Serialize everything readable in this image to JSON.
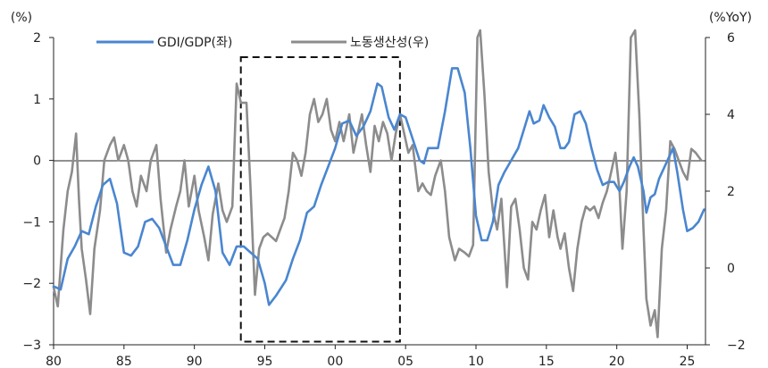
{
  "chart_data": {
    "type": "line",
    "left_unit": "(%)",
    "right_unit": "(%YoY)",
    "x_ticks": [
      "80",
      "85",
      "90",
      "95",
      "00",
      "05",
      "10",
      "15",
      "20",
      "25"
    ],
    "x_tick_years": [
      1980,
      1985,
      1990,
      1995,
      2000,
      2005,
      2010,
      2015,
      2020,
      2025
    ],
    "xlim": [
      1980,
      2026.3
    ],
    "left_ylim": [
      -3,
      2
    ],
    "left_ticks": [
      "2",
      "1",
      "0",
      "−1",
      "−2",
      "−3"
    ],
    "left_tick_values": [
      2,
      1,
      0,
      -1,
      -2,
      -3
    ],
    "right_ylim": [
      -2,
      6
    ],
    "right_ticks": [
      "6",
      "4",
      "2",
      "0",
      "−2"
    ],
    "right_tick_values": [
      6,
      4,
      2,
      0,
      -2
    ],
    "legend_position": "top",
    "highlight_box": {
      "x_from": 1993.3,
      "x_to": 2004.6,
      "y_from": -2.95,
      "y_to": 1.68
    },
    "series": [
      {
        "name": "GDI/GDP(좌)",
        "axis": "left",
        "color": "#4a86d0",
        "points": [
          [
            1980.0,
            -2.05
          ],
          [
            1980.5,
            -2.1
          ],
          [
            1981.0,
            -1.6
          ],
          [
            1981.5,
            -1.4
          ],
          [
            1982.0,
            -1.15
          ],
          [
            1982.5,
            -1.2
          ],
          [
            1983.0,
            -0.75
          ],
          [
            1983.5,
            -0.4
          ],
          [
            1984.0,
            -0.3
          ],
          [
            1984.5,
            -0.7
          ],
          [
            1985.0,
            -1.5
          ],
          [
            1985.5,
            -1.55
          ],
          [
            1986.0,
            -1.4
          ],
          [
            1986.5,
            -1.0
          ],
          [
            1987.0,
            -0.95
          ],
          [
            1987.5,
            -1.1
          ],
          [
            1988.0,
            -1.4
          ],
          [
            1988.5,
            -1.7
          ],
          [
            1989.0,
            -1.7
          ],
          [
            1989.5,
            -1.3
          ],
          [
            1990.0,
            -0.8
          ],
          [
            1990.5,
            -0.4
          ],
          [
            1991.0,
            -0.1
          ],
          [
            1991.5,
            -0.5
          ],
          [
            1992.0,
            -1.5
          ],
          [
            1992.5,
            -1.7
          ],
          [
            1993.0,
            -1.4
          ],
          [
            1993.5,
            -1.4
          ],
          [
            1994.0,
            -1.5
          ],
          [
            1994.5,
            -1.6
          ],
          [
            1995.0,
            -2.0
          ],
          [
            1995.3,
            -2.35
          ],
          [
            1995.8,
            -2.2
          ],
          [
            1996.5,
            -1.95
          ],
          [
            1997.0,
            -1.6
          ],
          [
            1997.5,
            -1.3
          ],
          [
            1998.0,
            -0.85
          ],
          [
            1998.5,
            -0.75
          ],
          [
            1999.0,
            -0.4
          ],
          [
            1999.5,
            -0.1
          ],
          [
            2000.0,
            0.2
          ],
          [
            2000.5,
            0.6
          ],
          [
            2001.0,
            0.65
          ],
          [
            2001.5,
            0.4
          ],
          [
            2002.0,
            0.55
          ],
          [
            2002.5,
            0.8
          ],
          [
            2003.0,
            1.25
          ],
          [
            2003.3,
            1.2
          ],
          [
            2003.8,
            0.7
          ],
          [
            2004.2,
            0.5
          ],
          [
            2004.6,
            0.75
          ],
          [
            2005.0,
            0.7
          ],
          [
            2005.5,
            0.35
          ],
          [
            2006.0,
            0.0
          ],
          [
            2006.3,
            -0.05
          ],
          [
            2006.6,
            0.2
          ],
          [
            2007.0,
            0.2
          ],
          [
            2007.3,
            0.2
          ],
          [
            2007.8,
            0.8
          ],
          [
            2008.3,
            1.5
          ],
          [
            2008.7,
            1.5
          ],
          [
            2009.2,
            1.1
          ],
          [
            2009.6,
            0.2
          ],
          [
            2010.0,
            -0.9
          ],
          [
            2010.4,
            -1.3
          ],
          [
            2010.8,
            -1.3
          ],
          [
            2011.2,
            -1.0
          ],
          [
            2011.6,
            -0.4
          ],
          [
            2012.0,
            -0.2
          ],
          [
            2012.5,
            0.0
          ],
          [
            2013.0,
            0.2
          ],
          [
            2013.4,
            0.5
          ],
          [
            2013.8,
            0.8
          ],
          [
            2014.1,
            0.6
          ],
          [
            2014.5,
            0.65
          ],
          [
            2014.8,
            0.9
          ],
          [
            2015.2,
            0.7
          ],
          [
            2015.6,
            0.55
          ],
          [
            2016.0,
            0.2
          ],
          [
            2016.3,
            0.2
          ],
          [
            2016.6,
            0.3
          ],
          [
            2017.0,
            0.75
          ],
          [
            2017.4,
            0.8
          ],
          [
            2017.8,
            0.6
          ],
          [
            2018.2,
            0.2
          ],
          [
            2018.6,
            -0.15
          ],
          [
            2019.0,
            -0.4
          ],
          [
            2019.4,
            -0.35
          ],
          [
            2019.8,
            -0.35
          ],
          [
            2020.2,
            -0.5
          ],
          [
            2020.5,
            -0.35
          ],
          [
            2020.9,
            -0.1
          ],
          [
            2021.2,
            0.05
          ],
          [
            2021.5,
            -0.1
          ],
          [
            2021.9,
            -0.5
          ],
          [
            2022.1,
            -0.85
          ],
          [
            2022.4,
            -0.6
          ],
          [
            2022.7,
            -0.55
          ],
          [
            2023.0,
            -0.3
          ],
          [
            2023.3,
            -0.15
          ],
          [
            2023.7,
            0.05
          ],
          [
            2024.0,
            0.2
          ],
          [
            2024.3,
            -0.2
          ],
          [
            2024.7,
            -0.8
          ],
          [
            2025.0,
            -1.15
          ],
          [
            2025.4,
            -1.1
          ],
          [
            2025.8,
            -1.0
          ],
          [
            2026.2,
            -0.8
          ]
        ]
      },
      {
        "name": "노동생산성(우)",
        "axis": "right",
        "color": "#8c8c8c",
        "points": [
          [
            1980.0,
            -0.5
          ],
          [
            1980.3,
            -1.0
          ],
          [
            1980.7,
            1.0
          ],
          [
            1981.0,
            2.0
          ],
          [
            1981.3,
            2.5
          ],
          [
            1981.6,
            3.5
          ],
          [
            1981.8,
            1.8
          ],
          [
            1982.0,
            0.5
          ],
          [
            1982.3,
            -0.3
          ],
          [
            1982.6,
            -1.2
          ],
          [
            1982.9,
            0.5
          ],
          [
            1983.3,
            1.5
          ],
          [
            1983.6,
            2.8
          ],
          [
            1984.0,
            3.2
          ],
          [
            1984.3,
            3.4
          ],
          [
            1984.6,
            2.8
          ],
          [
            1985.0,
            3.2
          ],
          [
            1985.3,
            2.8
          ],
          [
            1985.6,
            2.0
          ],
          [
            1985.9,
            1.6
          ],
          [
            1986.2,
            2.4
          ],
          [
            1986.6,
            2.0
          ],
          [
            1986.9,
            2.8
          ],
          [
            1987.3,
            3.2
          ],
          [
            1987.6,
            1.8
          ],
          [
            1988.0,
            0.4
          ],
          [
            1988.3,
            1.0
          ],
          [
            1988.7,
            1.6
          ],
          [
            1989.0,
            2.0
          ],
          [
            1989.3,
            2.8
          ],
          [
            1989.6,
            1.6
          ],
          [
            1990.0,
            2.4
          ],
          [
            1990.3,
            1.5
          ],
          [
            1990.7,
            0.8
          ],
          [
            1991.0,
            0.2
          ],
          [
            1991.3,
            1.4
          ],
          [
            1991.7,
            2.2
          ],
          [
            1992.0,
            1.5
          ],
          [
            1992.3,
            1.2
          ],
          [
            1992.7,
            1.6
          ],
          [
            1993.0,
            4.8
          ],
          [
            1993.3,
            4.3
          ],
          [
            1993.7,
            4.3
          ],
          [
            1994.0,
            2.0
          ],
          [
            1994.3,
            -0.7
          ],
          [
            1994.6,
            0.5
          ],
          [
            1994.9,
            0.8
          ],
          [
            1995.2,
            0.9
          ],
          [
            1995.5,
            0.8
          ],
          [
            1995.8,
            0.7
          ],
          [
            1996.1,
            1.0
          ],
          [
            1996.4,
            1.3
          ],
          [
            1996.7,
            2.0
          ],
          [
            1997.0,
            3.0
          ],
          [
            1997.3,
            2.8
          ],
          [
            1997.6,
            2.4
          ],
          [
            1997.9,
            3.0
          ],
          [
            1998.2,
            4.0
          ],
          [
            1998.5,
            4.4
          ],
          [
            1998.8,
            3.8
          ],
          [
            1999.1,
            4.0
          ],
          [
            1999.4,
            4.4
          ],
          [
            1999.7,
            3.6
          ],
          [
            2000.0,
            3.3
          ],
          [
            2000.3,
            3.8
          ],
          [
            2000.6,
            3.3
          ],
          [
            2001.0,
            4.0
          ],
          [
            2001.3,
            3.0
          ],
          [
            2001.6,
            3.5
          ],
          [
            2001.9,
            4.0
          ],
          [
            2002.2,
            3.2
          ],
          [
            2002.5,
            2.5
          ],
          [
            2002.8,
            3.7
          ],
          [
            2003.1,
            3.3
          ],
          [
            2003.4,
            3.8
          ],
          [
            2003.7,
            3.5
          ],
          [
            2004.0,
            2.8
          ],
          [
            2004.3,
            3.5
          ],
          [
            2004.6,
            4.0
          ],
          [
            2004.9,
            3.5
          ],
          [
            2005.2,
            3.0
          ],
          [
            2005.5,
            3.2
          ],
          [
            2005.9,
            2.0
          ],
          [
            2006.2,
            2.2
          ],
          [
            2006.5,
            2.0
          ],
          [
            2006.8,
            1.9
          ],
          [
            2007.1,
            2.4
          ],
          [
            2007.5,
            2.8
          ],
          [
            2007.8,
            2.0
          ],
          [
            2008.1,
            0.8
          ],
          [
            2008.5,
            0.2
          ],
          [
            2008.8,
            0.5
          ],
          [
            2009.2,
            0.4
          ],
          [
            2009.5,
            0.3
          ],
          [
            2009.8,
            0.6
          ],
          [
            2010.1,
            6.0
          ],
          [
            2010.3,
            6.2
          ],
          [
            2010.6,
            4.5
          ],
          [
            2010.9,
            2.5
          ],
          [
            2011.2,
            1.5
          ],
          [
            2011.5,
            1.0
          ],
          [
            2011.8,
            1.8
          ],
          [
            2012.2,
            -0.5
          ],
          [
            2012.5,
            1.6
          ],
          [
            2012.8,
            1.8
          ],
          [
            2013.1,
            1.0
          ],
          [
            2013.4,
            0.0
          ],
          [
            2013.7,
            -0.3
          ],
          [
            2014.0,
            1.2
          ],
          [
            2014.3,
            1.0
          ],
          [
            2014.6,
            1.5
          ],
          [
            2014.9,
            1.9
          ],
          [
            2015.2,
            0.8
          ],
          [
            2015.5,
            1.5
          ],
          [
            2015.8,
            0.8
          ],
          [
            2016.0,
            0.5
          ],
          [
            2016.3,
            0.9
          ],
          [
            2016.6,
            0.0
          ],
          [
            2016.9,
            -0.6
          ],
          [
            2017.2,
            0.5
          ],
          [
            2017.5,
            1.2
          ],
          [
            2017.8,
            1.6
          ],
          [
            2018.1,
            1.5
          ],
          [
            2018.4,
            1.6
          ],
          [
            2018.7,
            1.3
          ],
          [
            2019.0,
            1.7
          ],
          [
            2019.3,
            2.0
          ],
          [
            2019.6,
            2.5
          ],
          [
            2019.9,
            3.0
          ],
          [
            2020.2,
            2.0
          ],
          [
            2020.4,
            0.5
          ],
          [
            2020.7,
            2.0
          ],
          [
            2021.0,
            6.0
          ],
          [
            2021.3,
            6.2
          ],
          [
            2021.6,
            4.0
          ],
          [
            2021.9,
            1.0
          ],
          [
            2022.1,
            -0.8
          ],
          [
            2022.4,
            -1.5
          ],
          [
            2022.7,
            -1.1
          ],
          [
            2022.9,
            -1.8
          ],
          [
            2023.2,
            0.5
          ],
          [
            2023.5,
            1.5
          ],
          [
            2023.8,
            3.3
          ],
          [
            2024.1,
            3.1
          ],
          [
            2024.4,
            2.8
          ],
          [
            2024.7,
            2.5
          ],
          [
            2025.0,
            2.3
          ],
          [
            2025.3,
            3.1
          ],
          [
            2025.6,
            3.0
          ],
          [
            2026.0,
            2.8
          ]
        ]
      }
    ]
  }
}
